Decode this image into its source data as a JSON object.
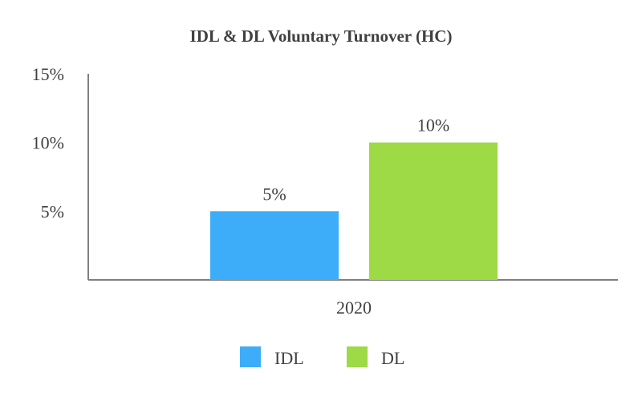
{
  "chart_data": {
    "type": "bar",
    "title": "IDL & DL Voluntary Turnover (HC)",
    "categories": [
      "2020"
    ],
    "series": [
      {
        "name": "IDL",
        "values": [
          5
        ],
        "color": "#3eadf9",
        "data_label": "5%"
      },
      {
        "name": "DL",
        "values": [
          10
        ],
        "color": "#9ed946",
        "data_label": "10%"
      }
    ],
    "ylim": [
      0,
      15
    ],
    "yticks": [
      {
        "value": 5,
        "label": "5%"
      },
      {
        "value": 10,
        "label": "10%"
      },
      {
        "value": 15,
        "label": "15%"
      }
    ],
    "xlabel": "",
    "ylabel": "",
    "grid": false,
    "legend_position": "bottom-center"
  }
}
